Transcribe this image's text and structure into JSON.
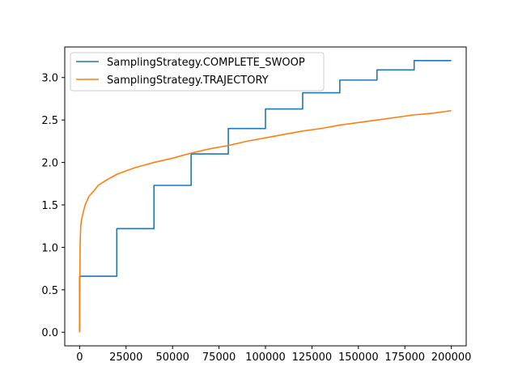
{
  "colors": {
    "series_1": "#1f77b4",
    "series_2": "#ff7f0e"
  },
  "chart_data": {
    "type": "line",
    "title": "",
    "xlabel": "",
    "ylabel": "",
    "xlim": [
      -8000,
      208000
    ],
    "ylim": [
      -0.16,
      3.36
    ],
    "xticks": [
      0,
      25000,
      50000,
      75000,
      100000,
      125000,
      150000,
      175000,
      200000
    ],
    "xtick_labels": [
      "0",
      "25000",
      "50000",
      "75000",
      "100000",
      "125000",
      "150000",
      "175000",
      "200000"
    ],
    "yticks": [
      0.0,
      0.5,
      1.0,
      1.5,
      2.0,
      2.5,
      3.0
    ],
    "ytick_labels": [
      "0.0",
      "0.5",
      "1.0",
      "1.5",
      "2.0",
      "2.5",
      "3.0"
    ],
    "grid": false,
    "legend_position": "upper-left",
    "series": [
      {
        "name": "SamplingStrategy.COMPLETE_SWOOP",
        "color": "#1f77b4",
        "step": true,
        "x": [
          0,
          0,
          20000,
          40000,
          60000,
          80000,
          100000,
          120000,
          140000,
          160000,
          180000,
          200000
        ],
        "y": [
          0.0,
          0.66,
          1.22,
          1.73,
          2.1,
          2.4,
          2.63,
          2.82,
          2.97,
          3.09,
          3.2,
          3.2
        ]
      },
      {
        "name": "SamplingStrategy.TRAJECTORY",
        "color": "#ff7f0e",
        "step": false,
        "x": [
          0,
          100,
          300,
          600,
          1000,
          2000,
          3000,
          5000,
          7500,
          10000,
          15000,
          20000,
          25000,
          30000,
          35000,
          40000,
          50000,
          60000,
          70000,
          80000,
          90000,
          100000,
          110000,
          120000,
          130000,
          140000,
          150000,
          160000,
          170000,
          180000,
          190000,
          200000
        ],
        "y": [
          0.0,
          0.6,
          1.05,
          1.25,
          1.32,
          1.42,
          1.5,
          1.6,
          1.66,
          1.73,
          1.8,
          1.86,
          1.9,
          1.94,
          1.97,
          2.0,
          2.05,
          2.11,
          2.16,
          2.2,
          2.25,
          2.29,
          2.33,
          2.37,
          2.4,
          2.44,
          2.47,
          2.5,
          2.53,
          2.56,
          2.58,
          2.61
        ]
      }
    ]
  }
}
